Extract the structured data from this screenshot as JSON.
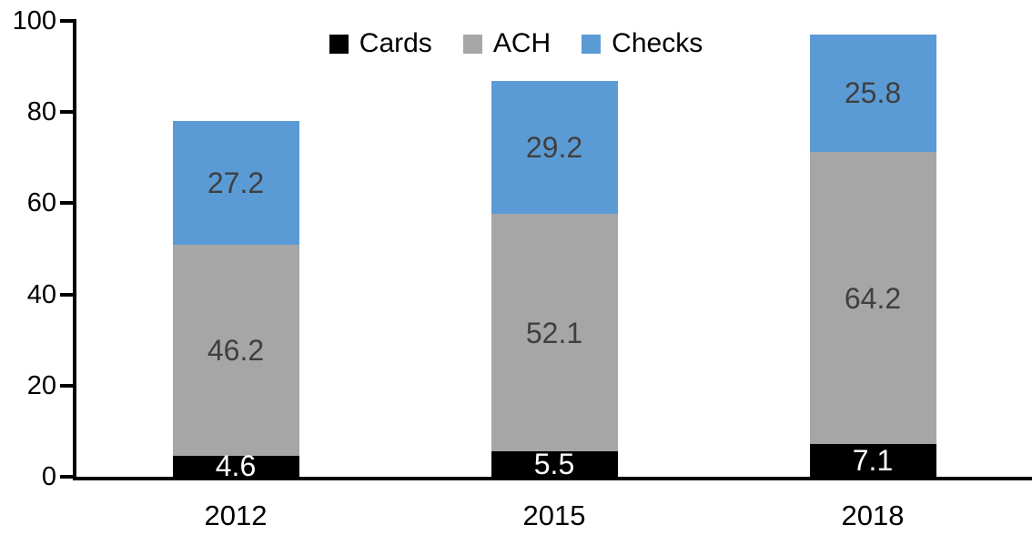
{
  "chart_data": {
    "type": "bar",
    "stacked": true,
    "title": "",
    "xlabel": "",
    "ylabel": "",
    "categories": [
      "2012",
      "2015",
      "2018"
    ],
    "series": [
      {
        "name": "Cards",
        "color": "#000000",
        "label_color": "#ffffff",
        "values": [
          4.6,
          5.5,
          7.1
        ]
      },
      {
        "name": "ACH",
        "color": "#a6a6a6",
        "label_color": "#3f3f3f",
        "values": [
          46.2,
          52.1,
          64.2
        ]
      },
      {
        "name": "Checks",
        "color": "#5b9bd5",
        "label_color": "#3f3f3f",
        "values": [
          27.2,
          29.2,
          25.8
        ]
      }
    ],
    "ylim": [
      0,
      100
    ],
    "yticks": [
      0,
      20,
      40,
      60,
      80,
      100
    ],
    "legend_position": "top-center",
    "grid": false,
    "axis_color": "#000000",
    "background_color": "#ffffff"
  }
}
